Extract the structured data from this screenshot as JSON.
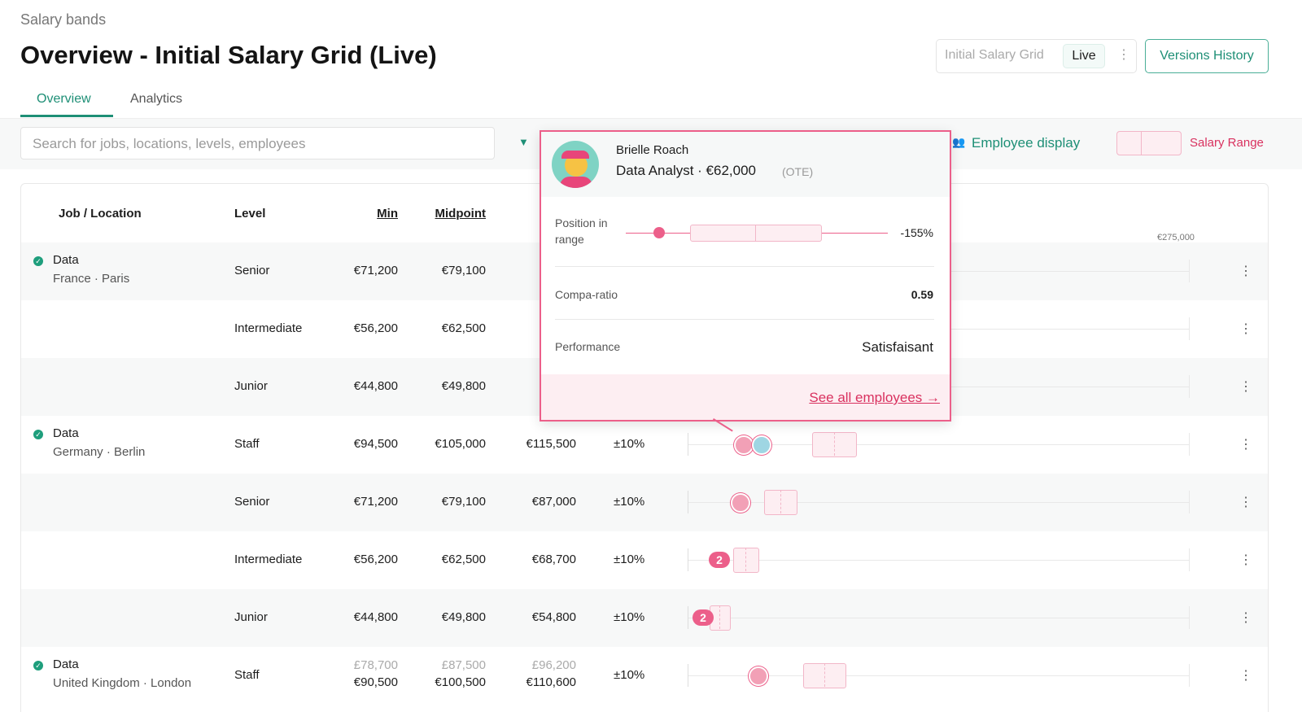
{
  "breadcrumb": "Salary bands",
  "title": "Overview - Initial Salary Grid (Live)",
  "version_selector": {
    "name": "Initial Salary Grid",
    "status": "Live"
  },
  "versions_button": "Versions History",
  "tabs": [
    "Overview",
    "Analytics"
  ],
  "toolbar": {
    "search_placeholder": "Search for jobs, locations, levels, employees",
    "employee_display": "Employee display",
    "salary_range": "Salary Range"
  },
  "table": {
    "columns": [
      "Job / Location",
      "Level",
      "Min",
      "Midpoint"
    ],
    "axis_max_label": "€275,000",
    "rows": [
      {
        "job": "Data",
        "location": "France · Paris",
        "level": "Senior",
        "min": "€71,200",
        "mid": "€79,100"
      },
      {
        "level": "Intermediate",
        "min": "€56,200",
        "mid": "€62,500"
      },
      {
        "level": "Junior",
        "min": "€44,800",
        "mid": "€49,800"
      },
      {
        "job": "Data",
        "location": "Germany · Berlin",
        "level": "Staff",
        "min": "€94,500",
        "mid": "€105,000",
        "max": "€115,500",
        "spread": "±10%"
      },
      {
        "level": "Senior",
        "min": "€71,200",
        "mid": "€79,100",
        "max": "€87,000",
        "spread": "±10%"
      },
      {
        "level": "Intermediate",
        "min": "€56,200",
        "mid": "€62,500",
        "max": "€68,700",
        "spread": "±10%",
        "badge": "2"
      },
      {
        "level": "Junior",
        "min": "€44,800",
        "mid": "€49,800",
        "max": "€54,800",
        "spread": "±10%",
        "badge": "2"
      },
      {
        "job": "Data",
        "location": "United Kingdom · London",
        "level": "Staff",
        "prev_min": "£78,700",
        "prev_mid": "£87,500",
        "prev_max": "£96,200",
        "min": "€90,500",
        "mid": "€100,500",
        "max": "€110,600",
        "spread": "±10%"
      }
    ]
  },
  "popup": {
    "name": "Brielle Roach",
    "role_salary": "Data Analyst · €62,000",
    "pay_type": "(OTE)",
    "position_label": "Position in range",
    "position_value": "-155%",
    "compa_label": "Compa-ratio",
    "compa_value": "0.59",
    "performance_label": "Performance",
    "performance_value": "Satisfaisant",
    "link": "See all employees →"
  }
}
